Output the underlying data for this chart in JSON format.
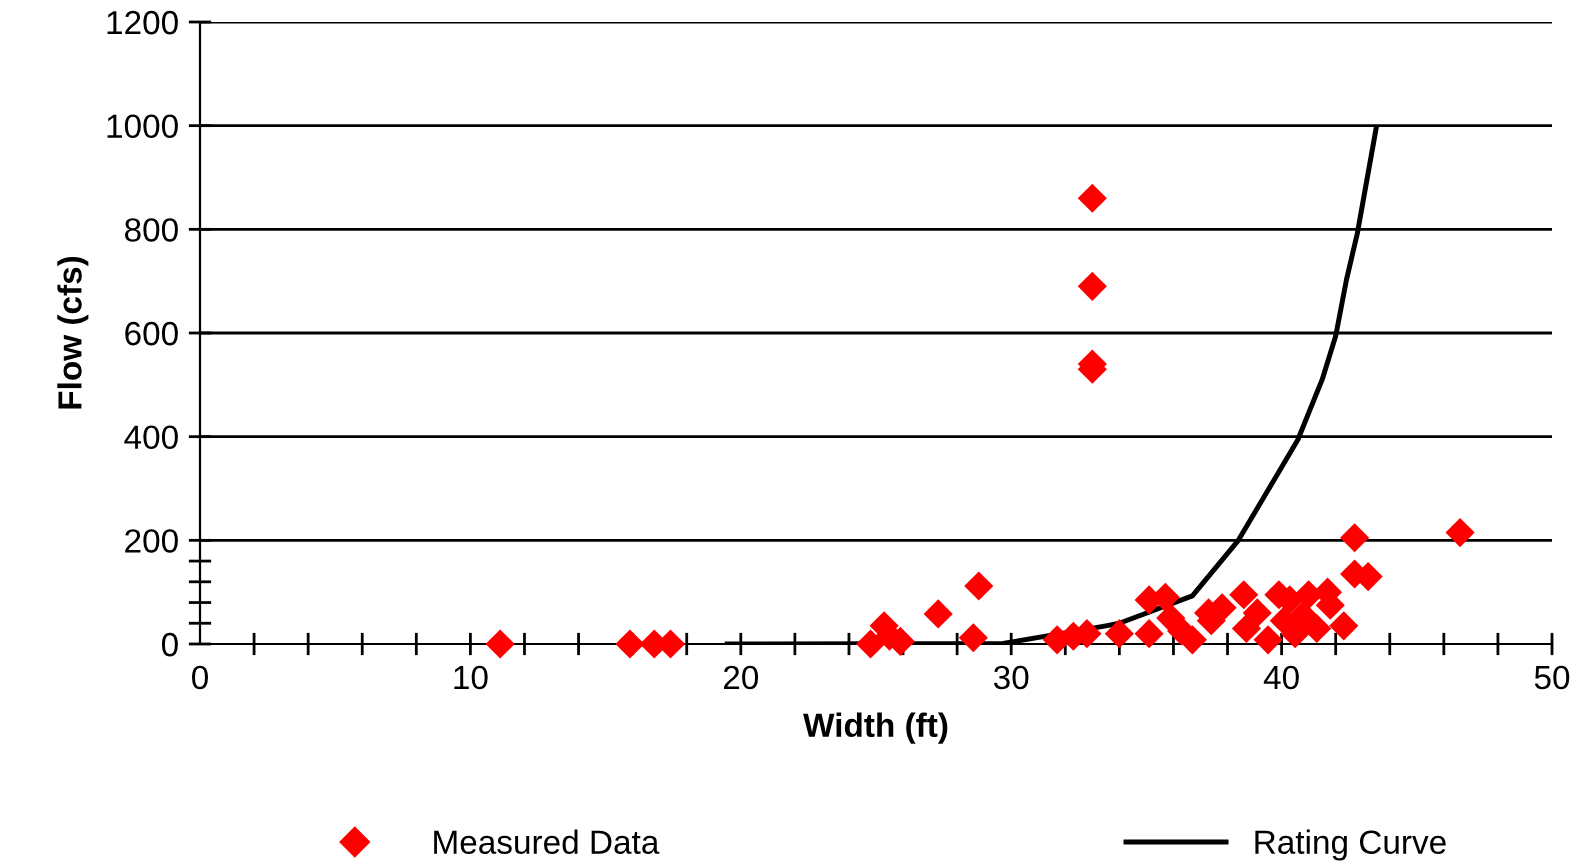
{
  "chart_data": {
    "type": "scatter",
    "xlabel": "Width (ft)",
    "ylabel": "Flow (cfs)",
    "xlim": [
      0,
      50
    ],
    "ylim": [
      0,
      1200
    ],
    "xticks": [
      0,
      {
        "value": 2,
        "label": null
      },
      {
        "value": 4,
        "label": null
      },
      {
        "value": 6,
        "label": null
      },
      {
        "value": 8,
        "label": null
      },
      10,
      {
        "value": 12,
        "label": null
      },
      {
        "value": 14,
        "label": null
      },
      {
        "value": 16,
        "label": null
      },
      {
        "value": 18,
        "label": null
      },
      20,
      {
        "value": 22,
        "label": null
      },
      {
        "value": 24,
        "label": null
      },
      {
        "value": 26,
        "label": null
      },
      {
        "value": 28,
        "label": null
      },
      30,
      {
        "value": 32,
        "label": null
      },
      {
        "value": 34,
        "label": null
      },
      {
        "value": 36,
        "label": null
      },
      {
        "value": 38,
        "label": null
      },
      40,
      {
        "value": 42,
        "label": null
      },
      {
        "value": 44,
        "label": null
      },
      {
        "value": 46,
        "label": null
      },
      {
        "value": 48,
        "label": null
      },
      50
    ],
    "yticks": [
      0,
      {
        "value": 40,
        "label": null
      },
      {
        "value": 80,
        "label": null
      },
      {
        "value": 120,
        "label": null
      },
      {
        "value": 160,
        "label": null
      },
      200,
      400,
      600,
      800,
      1000,
      1200
    ],
    "grid": "y",
    "legend": "bottom",
    "series": [
      {
        "name": "Measured Data",
        "color": "#ff0000",
        "marker": "diamond",
        "x": [
          11.1,
          15.9,
          16.8,
          17.4,
          24.8,
          25.3,
          25.5,
          25.9,
          27.3,
          28.8,
          28.6,
          31.7,
          32.3,
          32.8,
          34.0,
          33.0,
          33.0,
          33.0,
          33.0,
          35.1,
          35.1,
          35.7,
          35.9,
          36.3,
          36.7,
          37.4,
          37.8,
          37.3,
          38.6,
          38.7,
          39.1,
          39.5,
          39.9,
          40.1,
          40.3,
          40.5,
          40.8,
          41.0,
          41.3,
          41.7,
          41.8,
          42.3,
          42.7,
          43.2,
          42.7,
          46.6
        ],
        "values": [
          0,
          0,
          0,
          0,
          0,
          35,
          15,
          5,
          58,
          112,
          12,
          8,
          15,
          20,
          20,
          860,
          690,
          540,
          530,
          85,
          20,
          90,
          50,
          25,
          8,
          45,
          70,
          60,
          95,
          30,
          60,
          8,
          95,
          45,
          85,
          20,
          55,
          95,
          30,
          100,
          75,
          35,
          135,
          130,
          205,
          215
        ]
      },
      {
        "name": "Rating Curve",
        "type": "line",
        "color": "#000000",
        "marker": "none",
        "line_style": "solid",
        "x": [
          19.5,
          29.7,
          33.5,
          34.0,
          36.7,
          38.4,
          40.6,
          41.5,
          42.0,
          42.4,
          42.8,
          43.5
        ],
        "values": [
          0,
          1,
          35,
          40,
          93,
          200,
          394,
          510,
          594,
          703,
          792,
          996
        ]
      }
    ]
  }
}
